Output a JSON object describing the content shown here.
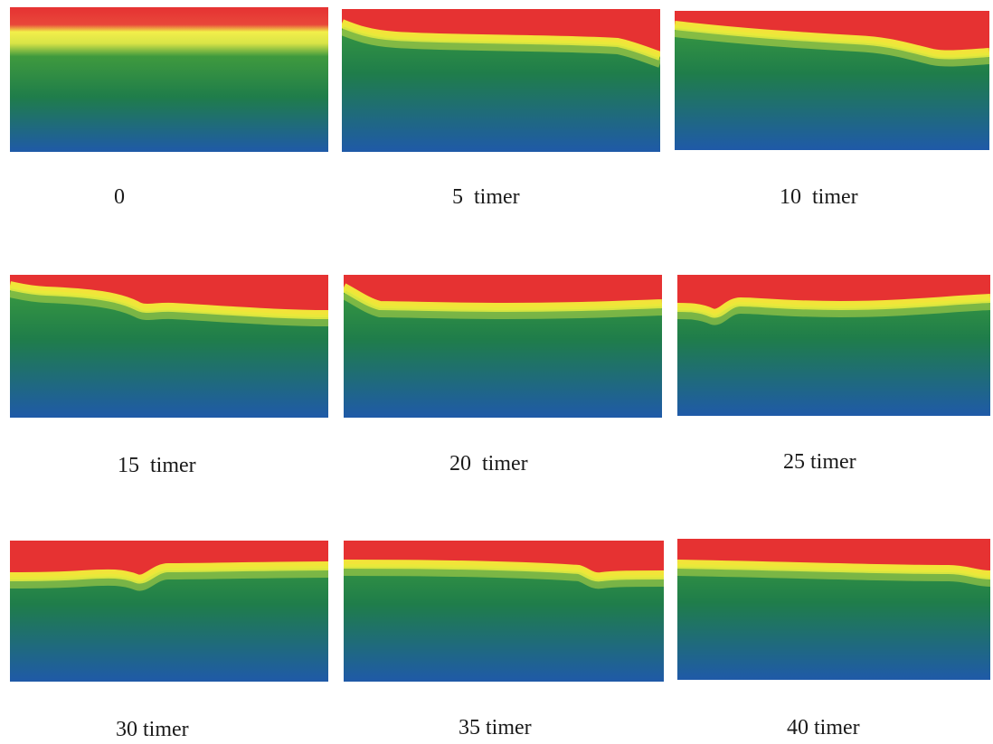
{
  "panels": [
    {
      "label": "0"
    },
    {
      "label": "5  timer"
    },
    {
      "label": "10  timer"
    },
    {
      "label": "15  timer"
    },
    {
      "label": "20  timer"
    },
    {
      "label": "25 timer"
    },
    {
      "label": "30 timer"
    },
    {
      "label": "35 timer"
    },
    {
      "label": "40 timer"
    }
  ],
  "colors": {
    "top": "#e63232",
    "band": "#f2ee3a",
    "mid": "#1f8a3c",
    "bottom": "#1f5aa8"
  }
}
